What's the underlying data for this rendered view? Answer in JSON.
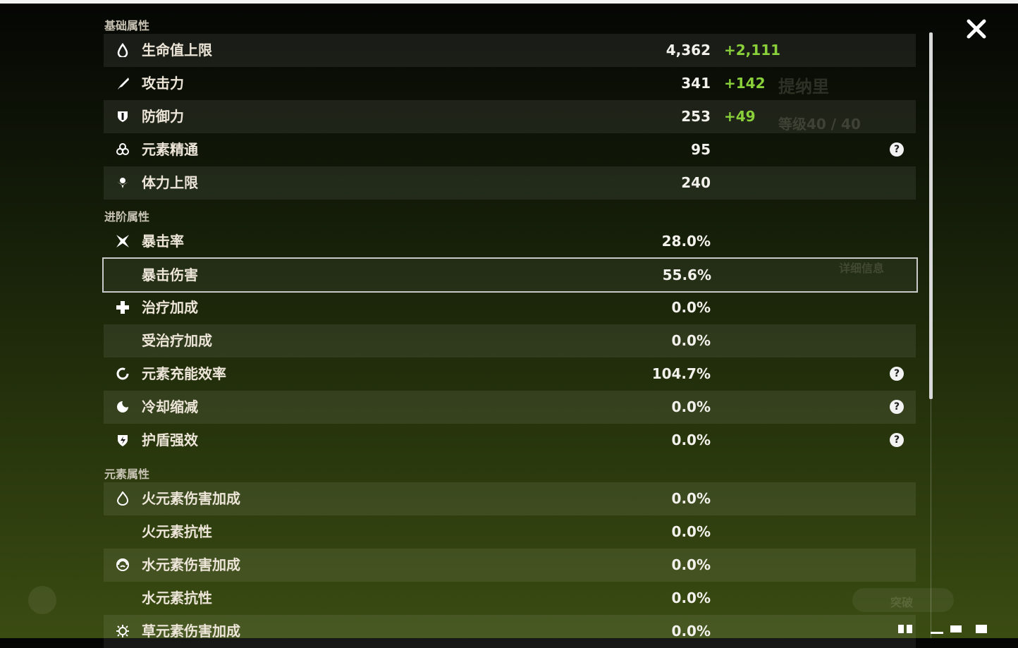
{
  "sections": [
    {
      "title": "基础属性",
      "rows": [
        {
          "name": "生命值上限",
          "value": "4,362",
          "bonus": "+2,111"
        },
        {
          "name": "攻击力",
          "value": "341",
          "bonus": "+142"
        },
        {
          "name": "防御力",
          "value": "253",
          "bonus": "+49"
        },
        {
          "name": "元素精通",
          "value": "95",
          "help": true
        },
        {
          "name": "体力上限",
          "value": "240"
        }
      ]
    },
    {
      "title": "进阶属性",
      "rows": [
        {
          "name": "暴击率",
          "value": "28.0%"
        },
        {
          "name": "暴击伤害",
          "value": "55.6%",
          "selected": true
        },
        {
          "name": "治疗加成",
          "value": "0.0%"
        },
        {
          "name": "受治疗加成",
          "value": "0.0%"
        },
        {
          "name": "元素充能效率",
          "value": "104.7%",
          "help": true
        },
        {
          "name": "冷却缩减",
          "value": "0.0%",
          "help": true
        },
        {
          "name": "护盾强效",
          "value": "0.0%",
          "help": true
        }
      ]
    },
    {
      "title": "元素属性",
      "rows": [
        {
          "name": "火元素伤害加成",
          "value": "0.0%"
        },
        {
          "name": "火元素抗性",
          "value": "0.0%"
        },
        {
          "name": "水元素伤害加成",
          "value": "0.0%"
        },
        {
          "name": "水元素抗性",
          "value": "0.0%"
        },
        {
          "name": "草元素伤害加成",
          "value": "0.0%"
        }
      ]
    }
  ],
  "background": {
    "character": "提纳里",
    "level": "等级40 / 40",
    "details": "详细信息",
    "ascend": "突破"
  }
}
